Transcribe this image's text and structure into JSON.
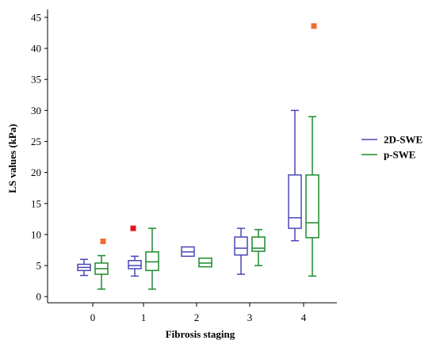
{
  "chart_data": {
    "type": "boxplot",
    "xlabel": "Fibrosis staging",
    "ylabel": "LS values (kPa)",
    "ylim": [
      -1,
      45.5
    ],
    "yticks": [
      0,
      5,
      10,
      15,
      20,
      25,
      30,
      35,
      40,
      45
    ],
    "categories": [
      "0",
      "1",
      "2",
      "3",
      "4"
    ],
    "legend_position": "right",
    "grid": false,
    "series": [
      {
        "name": "2D-SWE",
        "color": "#4a48b8",
        "boxes": [
          {
            "category": "0",
            "whisker_low": 3.4,
            "q1": 4.2,
            "median": 4.7,
            "q3": 5.2,
            "whisker_high": 6.0
          },
          {
            "category": "1",
            "whisker_low": 3.3,
            "q1": 4.5,
            "median": 5.0,
            "q3": 5.8,
            "whisker_high": 6.5
          },
          {
            "category": "2",
            "whisker_low": 6.5,
            "q1": 6.5,
            "median": 7.2,
            "q3": 8.0,
            "whisker_high": 8.0
          },
          {
            "category": "3",
            "whisker_low": 3.6,
            "q1": 6.7,
            "median": 7.8,
            "q3": 9.6,
            "whisker_high": 11.0
          },
          {
            "category": "4",
            "whisker_low": 9.0,
            "q1": 11.0,
            "median": 12.7,
            "q3": 19.6,
            "whisker_high": 30.0
          }
        ],
        "outliers": [
          {
            "category": "1",
            "value": 11.0,
            "color": "#e8141d"
          }
        ]
      },
      {
        "name": "p-SWE",
        "color": "#1b8a2c",
        "boxes": [
          {
            "category": "0",
            "whisker_low": 1.2,
            "q1": 3.6,
            "median": 4.5,
            "q3": 5.4,
            "whisker_high": 6.6
          },
          {
            "category": "1",
            "whisker_low": 1.2,
            "q1": 4.2,
            "median": 5.6,
            "q3": 7.2,
            "whisker_high": 11.0
          },
          {
            "category": "2",
            "whisker_low": 4.8,
            "q1": 4.8,
            "median": 5.4,
            "q3": 6.2,
            "whisker_high": 6.2
          },
          {
            "category": "3",
            "whisker_low": 5.0,
            "q1": 7.3,
            "median": 7.8,
            "q3": 9.6,
            "whisker_high": 10.8
          },
          {
            "category": "4",
            "whisker_low": 3.3,
            "q1": 9.5,
            "median": 11.9,
            "q3": 19.6,
            "whisker_high": 29.0
          }
        ],
        "outliers": [
          {
            "category": "0",
            "value": 8.9,
            "color": "#f26b35"
          },
          {
            "category": "4",
            "value": 43.6,
            "color": "#f26b35"
          }
        ]
      }
    ]
  }
}
